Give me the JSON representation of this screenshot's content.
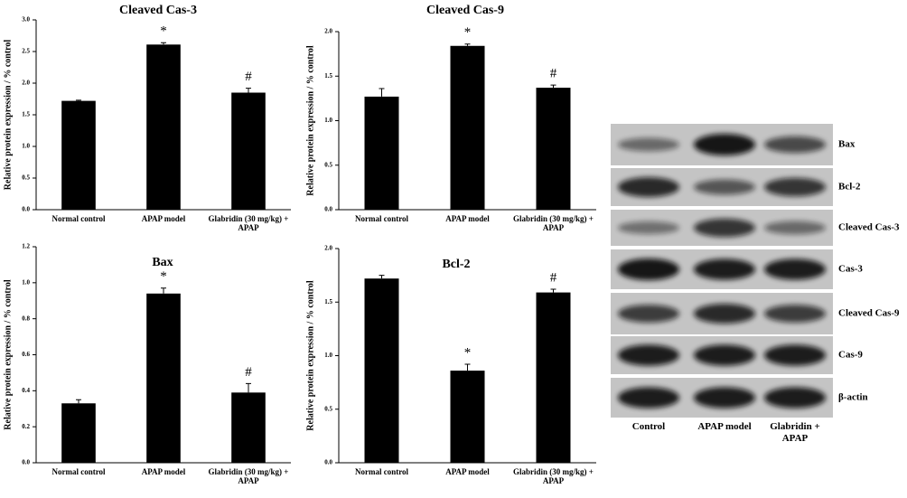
{
  "chart_data": [
    {
      "type": "bar",
      "title": "Cleaved Cas-3",
      "ylabel": "Relative protein expression / % control",
      "categories": [
        "Normal control",
        "APAP model",
        "Glabridin (30 mg/kg) + APAP"
      ],
      "values": [
        1.72,
        2.61,
        1.85
      ],
      "errors": [
        0.01,
        0.03,
        0.07
      ],
      "value_annotations": [
        null,
        "*",
        "#"
      ],
      "color": "#000000",
      "ylim": [
        0,
        3
      ],
      "yticks": [
        {
          "value": 0,
          "label": "0.0"
        },
        0.5,
        {
          "value": 1,
          "label": "1.0"
        },
        1.5,
        {
          "value": 2,
          "label": "2.0"
        },
        2.5,
        {
          "value": 3,
          "label": "3.0"
        }
      ]
    },
    {
      "type": "bar",
      "title": "Cleaved Cas-9",
      "ylabel": "Relative protein expression / % control",
      "categories": [
        "Normal control",
        "APAP model",
        "Glabridin (30 mg/kg) + APAP"
      ],
      "values": [
        1.27,
        1.84,
        1.37
      ],
      "errors": [
        0.09,
        0.02,
        0.03
      ],
      "value_annotations": [
        null,
        "*",
        "#"
      ],
      "color": "#000000",
      "ylim": [
        0,
        2
      ],
      "yticks": [
        {
          "value": 0,
          "label": "0.0"
        },
        0.5,
        {
          "value": 1,
          "label": "1.0"
        },
        1.5,
        {
          "value": 2,
          "label": "2.0"
        }
      ]
    },
    {
      "type": "bar",
      "title": "Bax",
      "ylabel": "Relative protein expression / % control",
      "categories": [
        "Normal control",
        "APAP model",
        "Glabridin (30 mg/kg) + APAP"
      ],
      "values": [
        0.33,
        0.94,
        0.39
      ],
      "errors": [
        0.02,
        0.03,
        0.05
      ],
      "value_annotations": [
        null,
        "*",
        "#"
      ],
      "color": "#000000",
      "ylim": [
        0,
        1.2
      ],
      "yticks": [
        {
          "value": 0,
          "label": "0.0"
        },
        0.2,
        0.4,
        0.6,
        0.8,
        {
          "value": 1,
          "label": "1.0"
        },
        1.2
      ]
    },
    {
      "type": "bar",
      "title": "Bcl-2",
      "ylabel": "Relative protein expression / % control",
      "categories": [
        "Normal control",
        "APAP model",
        "Glabridin (30 mg/kg) + APAP"
      ],
      "values": [
        1.72,
        0.86,
        1.59
      ],
      "errors": [
        0.03,
        0.06,
        0.03
      ],
      "value_annotations": [
        null,
        "*",
        "#"
      ],
      "color": "#000000",
      "ylim": [
        0,
        2
      ],
      "yticks": [
        {
          "value": 0,
          "label": "0.0"
        },
        0.5,
        {
          "value": 1,
          "label": "1.0"
        },
        1.5,
        {
          "value": 2,
          "label": "2.0"
        }
      ]
    }
  ],
  "blot": {
    "rows": [
      "Bax",
      "Bcl-2",
      "Cleaved Cas-3",
      "Cas-3",
      "Cleaved Cas-9",
      "Cas-9",
      "β-actin"
    ],
    "lanes": [
      "Control",
      "APAP model",
      "Glabridin + APAP"
    ]
  }
}
